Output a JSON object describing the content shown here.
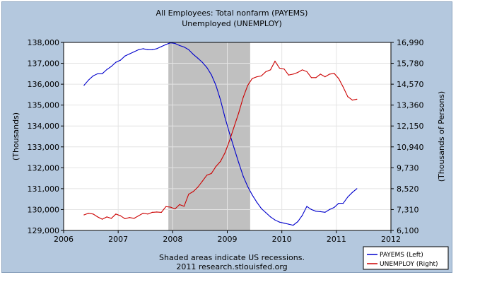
{
  "chart_data": {
    "type": "line",
    "title": "All Employees: Total nonfarm (PAYEMS)",
    "subtitle": "Unemployed (UNEMPLOY)",
    "ylabel_left": "(Thousands)",
    "ylabel_right": "(Thousands of Persons)",
    "xlim": [
      2006,
      2012
    ],
    "ylim_left": [
      129000,
      138000
    ],
    "ylim_right": [
      6100,
      16990
    ],
    "x_ticks": [
      "2006",
      "2007",
      "2008",
      "2009",
      "2010",
      "2011",
      "2012"
    ],
    "y_ticks_left": [
      "129,000",
      "130,000",
      "131,000",
      "132,000",
      "133,000",
      "134,000",
      "135,000",
      "136,000",
      "137,000",
      "138,000"
    ],
    "y_ticks_right": [
      "6,100",
      "7,310",
      "8,520",
      "9,730",
      "10,940",
      "12,150",
      "13,360",
      "14,570",
      "15,780",
      "16,990"
    ],
    "recession": {
      "start": 2007.92,
      "end": 2009.42,
      "color": "#c0c0c0"
    },
    "footnote": [
      "Shaded areas indicate US recessions.",
      "2011 research.stlouisfed.org"
    ],
    "legend_position": "bottom-right",
    "series": [
      {
        "name": "PAYEMS (Left)",
        "axis": "left",
        "color": "#0000cc",
        "x": [
          2006.375,
          2006.458,
          2006.542,
          2006.625,
          2006.708,
          2006.792,
          2006.875,
          2006.958,
          2007.042,
          2007.125,
          2007.208,
          2007.292,
          2007.375,
          2007.458,
          2007.542,
          2007.625,
          2007.708,
          2007.792,
          2007.875,
          2007.958,
          2008.042,
          2008.125,
          2008.208,
          2008.292,
          2008.375,
          2008.458,
          2008.542,
          2008.625,
          2008.708,
          2008.792,
          2008.875,
          2008.958,
          2009.042,
          2009.125,
          2009.208,
          2009.292,
          2009.375,
          2009.458,
          2009.542,
          2009.625,
          2009.708,
          2009.792,
          2009.875,
          2009.958,
          2010.042,
          2010.125,
          2010.208,
          2010.292,
          2010.375,
          2010.458,
          2010.542,
          2010.625,
          2010.708,
          2010.792,
          2010.875,
          2010.958,
          2011.042,
          2011.125,
          2011.208,
          2011.292,
          2011.375
        ],
        "values": [
          135950,
          136200,
          136400,
          136500,
          136500,
          136700,
          136850,
          137050,
          137150,
          137350,
          137450,
          137550,
          137650,
          137700,
          137650,
          137650,
          137700,
          137800,
          137900,
          137980,
          137950,
          137850,
          137780,
          137650,
          137430,
          137250,
          137050,
          136800,
          136450,
          135950,
          135250,
          134400,
          133650,
          132950,
          132250,
          131600,
          131100,
          130700,
          130350,
          130050,
          129850,
          129650,
          129500,
          129400,
          129350,
          129300,
          129250,
          129420,
          129720,
          130150,
          130000,
          129920,
          129900,
          129870,
          130000,
          130100,
          130300,
          130300,
          130600,
          130820,
          131000
        ]
      },
      {
        "name": "UNEMPLOY (Right)",
        "axis": "right",
        "color": "#cc0000",
        "x": [
          2006.375,
          2006.458,
          2006.542,
          2006.625,
          2006.708,
          2006.792,
          2006.875,
          2006.958,
          2007.042,
          2007.125,
          2007.208,
          2007.292,
          2007.375,
          2007.458,
          2007.542,
          2007.625,
          2007.708,
          2007.792,
          2007.875,
          2007.958,
          2008.042,
          2008.125,
          2008.208,
          2008.292,
          2008.375,
          2008.458,
          2008.542,
          2008.625,
          2008.708,
          2008.792,
          2008.875,
          2008.958,
          2009.042,
          2009.125,
          2009.208,
          2009.292,
          2009.375,
          2009.458,
          2009.542,
          2009.625,
          2009.708,
          2009.792,
          2009.875,
          2009.958,
          2010.042,
          2010.125,
          2010.208,
          2010.292,
          2010.375,
          2010.458,
          2010.542,
          2010.625,
          2010.708,
          2010.792,
          2010.875,
          2010.958,
          2011.042,
          2011.125,
          2011.208,
          2011.292,
          2011.375
        ],
        "values": [
          7000,
          7100,
          7050,
          6880,
          6750,
          6880,
          6800,
          7050,
          6950,
          6780,
          6850,
          6800,
          6950,
          7100,
          7050,
          7150,
          7170,
          7150,
          7480,
          7450,
          7350,
          7600,
          7500,
          8200,
          8350,
          8600,
          8950,
          9300,
          9400,
          9800,
          10100,
          10600,
          11300,
          12100,
          12900,
          13800,
          14500,
          14900,
          15000,
          15050,
          15300,
          15400,
          15900,
          15500,
          15450,
          15100,
          15150,
          15250,
          15400,
          15300,
          14950,
          14950,
          15150,
          15000,
          15150,
          15200,
          14900,
          14400,
          13850,
          13650,
          13700
        ]
      }
    ]
  }
}
